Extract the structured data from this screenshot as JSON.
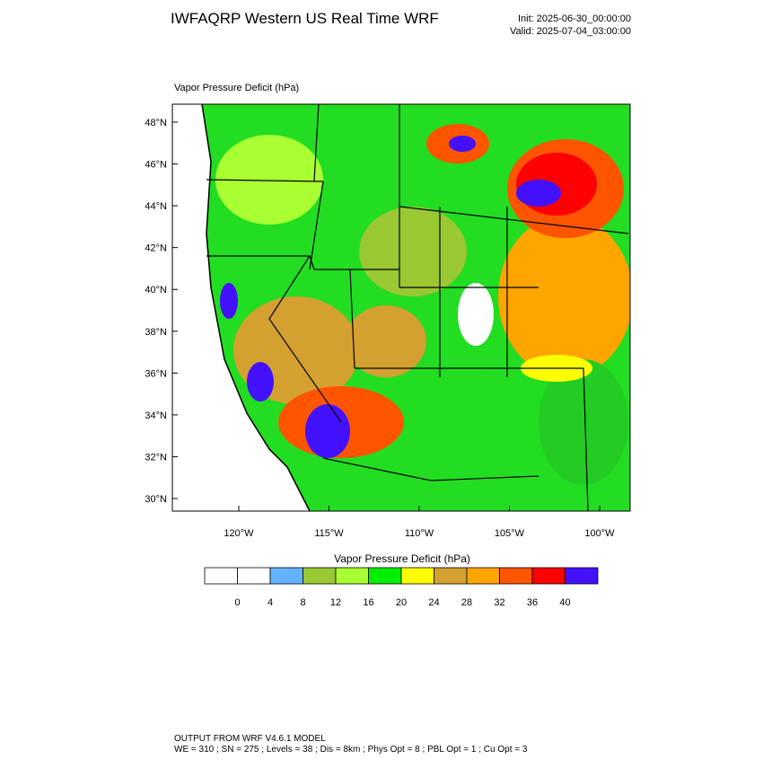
{
  "header": {
    "title": "IWFAQRP Western US Real Time WRF",
    "init": "Init: 2025-06-30_00:00:00",
    "valid": "Valid: 2025-07-04_03:00:00"
  },
  "map": {
    "label": "Vapor Pressure Deficit   (hPa)",
    "lat_ticks": [
      {
        "value": 48,
        "label": "48°N"
      },
      {
        "value": 46,
        "label": "46°N"
      },
      {
        "value": 44,
        "label": "44°N"
      },
      {
        "value": 42,
        "label": "42°N"
      },
      {
        "value": 40,
        "label": "40°N"
      },
      {
        "value": 38,
        "label": "38°N"
      },
      {
        "value": 36,
        "label": "36°N"
      },
      {
        "value": 34,
        "label": "34°N"
      },
      {
        "value": 32,
        "label": "32°N"
      },
      {
        "value": 30,
        "label": "30°N"
      }
    ],
    "lon_ticks": [
      {
        "value": -120,
        "label": "120°W"
      },
      {
        "value": -115,
        "label": "115°W"
      },
      {
        "value": -110,
        "label": "110°W"
      },
      {
        "value": -105,
        "label": "105°W"
      },
      {
        "value": -100,
        "label": "100°W"
      }
    ]
  },
  "colorbar": {
    "title": "Vapor Pressure Deficit  (hPa)",
    "colors": [
      "#ffffff",
      "#ffffff",
      "#63b4ff",
      "#99c832",
      "#aaff33",
      "#00ee00",
      "#ffff00",
      "#d4a030",
      "#ffa500",
      "#ff5500",
      "#ff0000",
      "#4411ff"
    ],
    "levels": [
      0,
      4,
      8,
      12,
      16,
      20,
      24,
      28,
      32,
      36,
      40
    ]
  },
  "footer": {
    "line1": "OUTPUT FROM WRF V4.6.1 MODEL",
    "line2": "WE = 310 ; SN = 275 ; Levels = 38 ; Dis = 8km ; Phys Opt = 8 ; PBL Opt = 1 ; Cu Opt = 3"
  }
}
